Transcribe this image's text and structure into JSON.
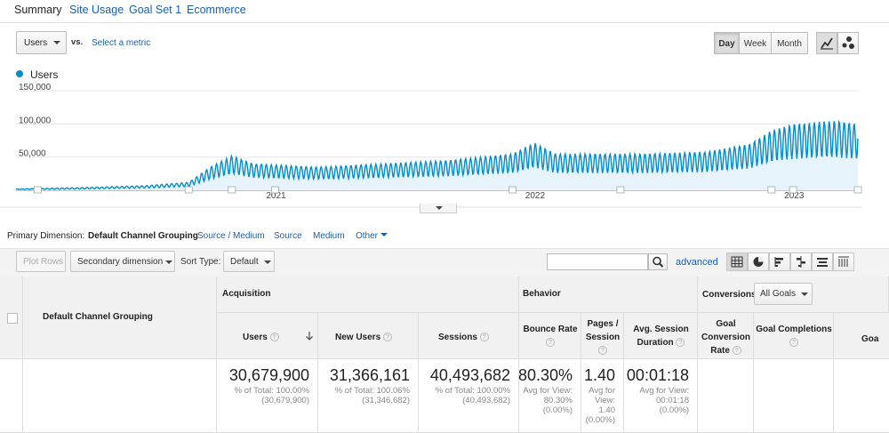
{
  "tabs": [
    "Summary",
    "Site Usage",
    "Goal Set 1",
    "Ecommerce"
  ],
  "metric_select": "Users",
  "vs_label": "vs.",
  "select_metric": "Select a metric",
  "granularity": [
    "Day",
    "Week",
    "Month"
  ],
  "legend": "Users",
  "chart_data": {
    "type": "line",
    "series": [
      {
        "name": "Users",
        "color": "#058dc7"
      }
    ],
    "y_ticks": [
      "150,000",
      "100,000",
      "50,000"
    ],
    "x_ticks": [
      "2021",
      "2022",
      "2023"
    ],
    "ylim": [
      0,
      150000
    ],
    "x_range": [
      "2020-01",
      "2023-04"
    ],
    "grid": true,
    "anchors": [
      [
        "2020-01",
        2000
      ],
      [
        "2020-04",
        4000
      ],
      [
        "2020-07",
        7000
      ],
      [
        "2020-09",
        12000
      ],
      [
        "2020-10",
        35000
      ],
      [
        "2020-11",
        52000
      ],
      [
        "2020-12",
        40000
      ],
      [
        "2021-03",
        35000
      ],
      [
        "2021-06",
        40000
      ],
      [
        "2021-09",
        45000
      ],
      [
        "2021-12",
        55000
      ],
      [
        "2022-01",
        72000
      ],
      [
        "2022-02",
        55000
      ],
      [
        "2022-06",
        55000
      ],
      [
        "2022-09",
        58000
      ],
      [
        "2022-11",
        70000
      ],
      [
        "2022-12",
        90000
      ],
      [
        "2023-01",
        100000
      ],
      [
        "2023-03",
        105000
      ],
      [
        "2023-04",
        100000
      ]
    ]
  },
  "primary_dimension": {
    "label": "Primary Dimension:",
    "active": "Default Channel Grouping",
    "links": [
      "Source / Medium",
      "Source",
      "Medium",
      "Other"
    ]
  },
  "toolbar": {
    "plot_rows": "Plot Rows",
    "secondary_dimension": "Secondary dimension",
    "sort_type_label": "Sort Type:",
    "sort_type": "Default",
    "advanced": "advanced"
  },
  "table": {
    "dimension_header": "Default Channel Grouping",
    "groups": {
      "acquisition": "Acquisition",
      "behavior": "Behavior",
      "conversions": "Conversions",
      "all_goals": "All Goals"
    },
    "columns": {
      "users": "Users",
      "new_users": "New Users",
      "sessions": "Sessions",
      "bounce_rate": "Bounce Rate",
      "pages_session": "Pages / Session",
      "avg_session": "Avg. Session Duration",
      "goal_conv": "Goal Conversion Rate",
      "goal_completions": "Goal Completions",
      "goal_value_partial": "Goa"
    },
    "totals": {
      "users": {
        "value": "30,679,900",
        "l1": "% of Total: 100.00%",
        "l2": "(30,679,900)"
      },
      "new_users": {
        "value": "31,366,161",
        "l1": "% of Total: 100.06%",
        "l2": "(31,346,682)"
      },
      "sessions": {
        "value": "40,493,682",
        "l1": "% of Total: 100.00%",
        "l2": "(40,493,682)"
      },
      "bounce_rate": {
        "value": "80.30%",
        "l1": "Avg for View:",
        "l2": "80.30%",
        "l3": "(0.00%)"
      },
      "pages_session": {
        "value": "1.40",
        "l1": "Avg for",
        "l2": "View:",
        "l3": "1.40",
        "l4": "(0.00%)"
      },
      "avg_session": {
        "value": "00:01:18",
        "l1": "Avg for View:",
        "l2": "00:01:18",
        "l3": "(0.00%)"
      }
    }
  }
}
